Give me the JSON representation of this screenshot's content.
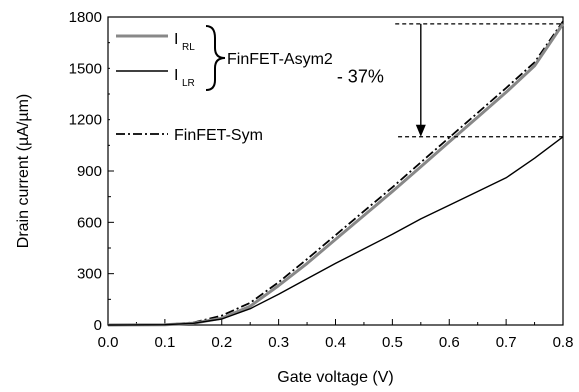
{
  "chart_data": {
    "type": "line",
    "xlabel": "Gate voltage (V)",
    "ylabel": "Drain current (µA/µm)",
    "xlim": [
      0.0,
      0.8
    ],
    "ylim": [
      0,
      1800
    ],
    "x_ticks": [
      0.0,
      0.1,
      0.2,
      0.3,
      0.4,
      0.5,
      0.6,
      0.7,
      0.8
    ],
    "x_tick_labels": [
      "0.0",
      "0.1",
      "0.2",
      "0.3",
      "0.4",
      "0.5",
      "0.6",
      "0.7",
      "0.8"
    ],
    "y_ticks": [
      0,
      300,
      600,
      900,
      1200,
      1500,
      1800
    ],
    "y_tick_labels": [
      "0",
      "300",
      "600",
      "900",
      "1200",
      "1500",
      "1800"
    ],
    "grid": false,
    "legend_placement": "top-left",
    "series": [
      {
        "name": "I_RL",
        "label_main": "I",
        "label_sub": "RL",
        "group": "FinFET-Asym2",
        "style": "solid",
        "color": "#888888",
        "x": [
          0.0,
          0.1,
          0.15,
          0.2,
          0.25,
          0.3,
          0.35,
          0.4,
          0.45,
          0.5,
          0.55,
          0.6,
          0.65,
          0.7,
          0.75,
          0.8
        ],
        "y": [
          0,
          2,
          10,
          40,
          110,
          230,
          360,
          500,
          640,
          780,
          925,
          1070,
          1215,
          1360,
          1515,
          1760
        ]
      },
      {
        "name": "I_LR",
        "label_main": "I",
        "label_sub": "LR",
        "group": "FinFET-Asym2",
        "style": "solid",
        "color": "#000000",
        "x": [
          0.0,
          0.1,
          0.15,
          0.2,
          0.25,
          0.3,
          0.35,
          0.4,
          0.45,
          0.5,
          0.55,
          0.6,
          0.65,
          0.7,
          0.75,
          0.8
        ],
        "y": [
          0,
          2,
          10,
          35,
          95,
          180,
          270,
          360,
          445,
          530,
          620,
          700,
          780,
          860,
          975,
          1100
        ]
      },
      {
        "name": "FinFET-Sym",
        "label_main": "FinFET-Sym",
        "style": "dashdot",
        "color": "#000000",
        "x": [
          0.0,
          0.1,
          0.15,
          0.2,
          0.25,
          0.3,
          0.35,
          0.4,
          0.45,
          0.5,
          0.55,
          0.6,
          0.65,
          0.7,
          0.75,
          0.8
        ],
        "y": [
          0,
          3,
          14,
          55,
          130,
          250,
          385,
          525,
          665,
          805,
          950,
          1095,
          1240,
          1385,
          1535,
          1775
        ]
      }
    ],
    "legend_group_label": "FinFET-Asym2",
    "annotation": {
      "text": "- 37%",
      "from_value": 1760,
      "to_value": 1100,
      "arrow_x": 0.55
    }
  }
}
